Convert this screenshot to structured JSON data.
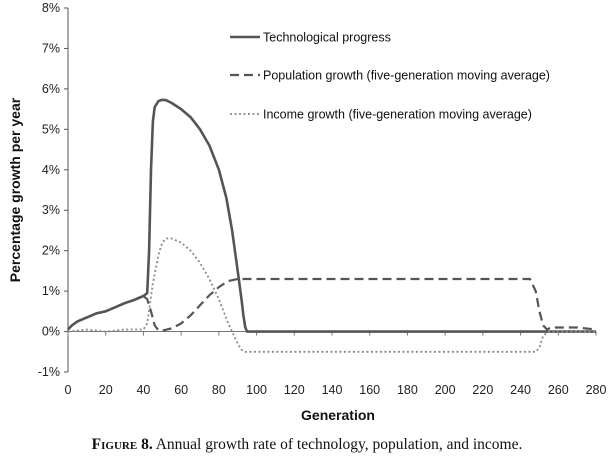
{
  "chart_data": {
    "type": "line",
    "title": "",
    "xlabel": "Generation",
    "ylabel": "Percentage growth per year",
    "xlim": [
      0,
      280
    ],
    "ylim": [
      -1,
      8
    ],
    "xticks": [
      "0",
      "20",
      "40",
      "60",
      "80",
      "100",
      "120",
      "140",
      "160",
      "180",
      "200",
      "220",
      "240",
      "260",
      "280"
    ],
    "yticks": [
      "-1%",
      "0%",
      "1%",
      "2%",
      "3%",
      "4%",
      "5%",
      "6%",
      "7%",
      "8%"
    ],
    "grid": false,
    "legend_position": "top-right",
    "series": [
      {
        "name": "Technological progress",
        "style": "solid",
        "color": "#555555",
        "x": [
          0,
          2,
          5,
          10,
          15,
          20,
          25,
          30,
          35,
          40,
          42,
          43,
          44,
          45,
          46,
          48,
          50,
          52,
          55,
          60,
          65,
          70,
          75,
          80,
          84,
          87,
          90,
          92,
          93,
          94,
          95,
          100,
          150,
          200,
          250,
          280
        ],
        "y": [
          0.05,
          0.15,
          0.25,
          0.35,
          0.45,
          0.5,
          0.6,
          0.7,
          0.78,
          0.88,
          0.95,
          2.0,
          4.0,
          5.2,
          5.55,
          5.7,
          5.73,
          5.72,
          5.65,
          5.5,
          5.3,
          5.0,
          4.6,
          4.0,
          3.3,
          2.5,
          1.5,
          0.8,
          0.4,
          0.1,
          0.0,
          0.0,
          0.0,
          0.0,
          0.0,
          0.0
        ]
      },
      {
        "name": "Population growth (five-generation moving average)",
        "style": "dashed",
        "color": "#555555",
        "x": [
          0,
          2,
          5,
          10,
          15,
          20,
          25,
          30,
          35,
          40,
          42,
          44,
          46,
          48,
          50,
          55,
          60,
          65,
          70,
          75,
          80,
          85,
          90,
          95,
          100,
          150,
          200,
          245,
          248,
          250,
          252,
          254,
          256,
          260,
          270,
          280
        ],
        "y": [
          0.05,
          0.15,
          0.25,
          0.35,
          0.45,
          0.5,
          0.6,
          0.7,
          0.78,
          0.88,
          0.8,
          0.5,
          0.15,
          0.03,
          0.02,
          0.08,
          0.2,
          0.4,
          0.65,
          0.9,
          1.1,
          1.25,
          1.3,
          1.3,
          1.3,
          1.3,
          1.3,
          1.3,
          1.0,
          0.5,
          0.15,
          0.05,
          0.1,
          0.1,
          0.1,
          0.05
        ]
      },
      {
        "name": "Income growth (five-generation moving average)",
        "style": "dotted",
        "color": "#8a8a8a",
        "x": [
          0,
          10,
          20,
          30,
          40,
          42,
          45,
          48,
          50,
          52,
          55,
          60,
          65,
          70,
          75,
          80,
          85,
          88,
          90,
          92,
          94,
          95,
          100,
          150,
          200,
          240,
          248,
          250,
          252,
          255,
          260,
          270,
          280
        ],
        "y": [
          0.0,
          0.05,
          0.0,
          0.05,
          0.05,
          0.2,
          1.2,
          1.9,
          2.2,
          2.3,
          2.3,
          2.2,
          2.0,
          1.7,
          1.3,
          0.8,
          0.2,
          -0.1,
          -0.3,
          -0.45,
          -0.5,
          -0.5,
          -0.5,
          -0.5,
          -0.5,
          -0.5,
          -0.5,
          -0.4,
          -0.1,
          0.0,
          0.0,
          0.0,
          0.0
        ]
      }
    ]
  },
  "caption": {
    "lead": "Figure 8.",
    "text": " Annual growth rate of technology, population, and income."
  }
}
